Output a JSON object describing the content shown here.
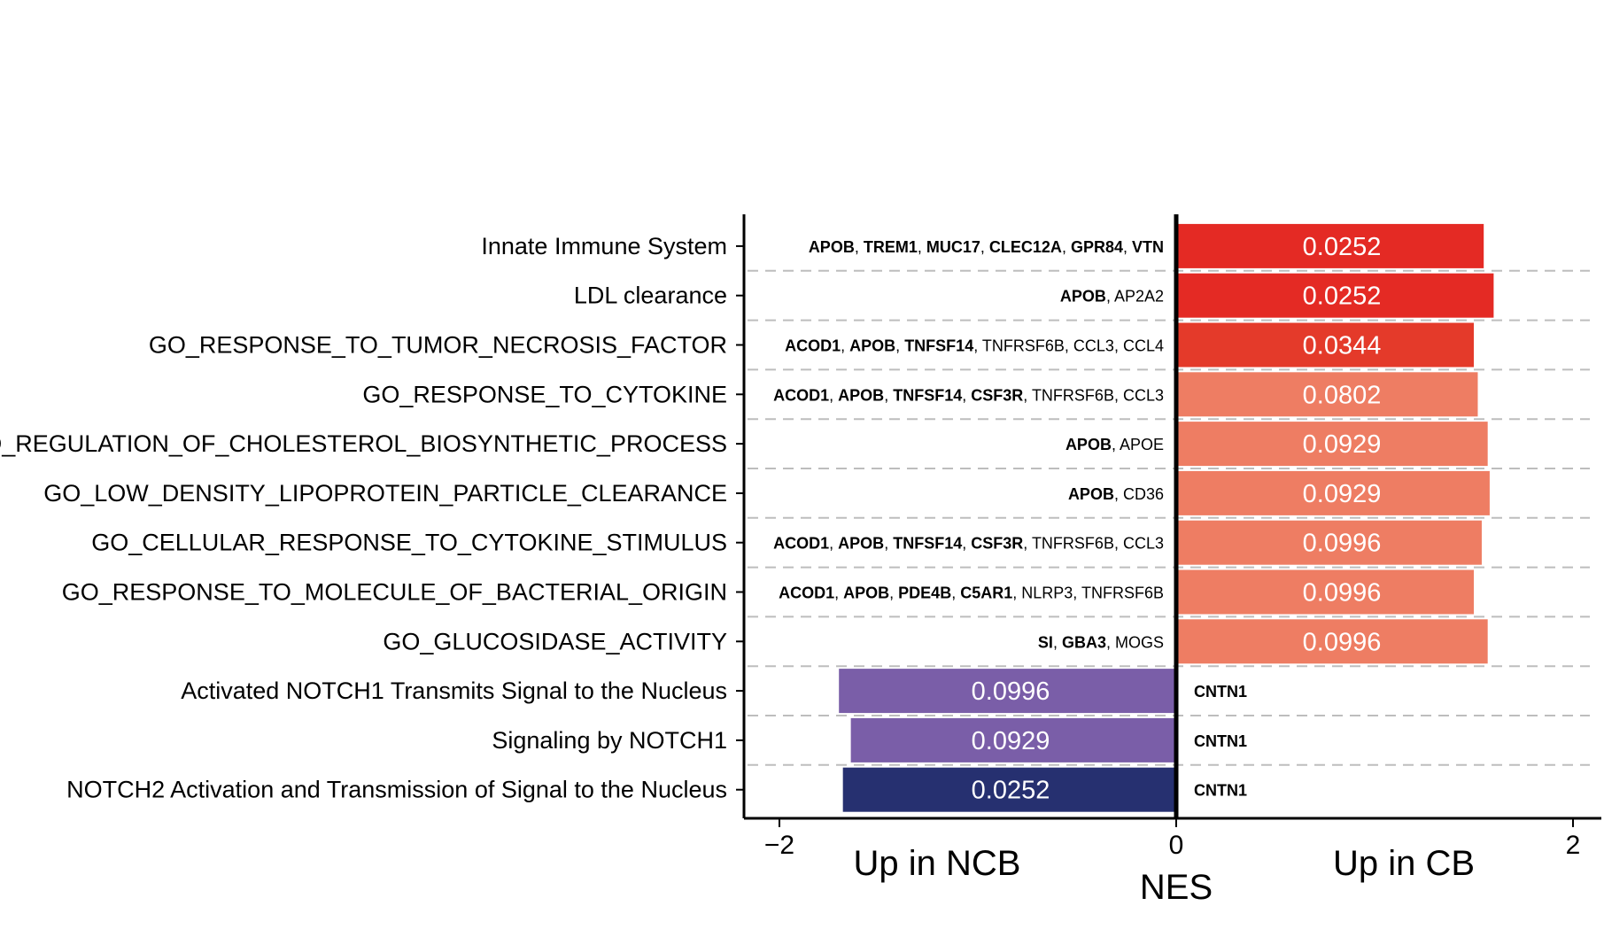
{
  "chart_data": {
    "type": "bar",
    "orientation": "horizontal",
    "categories": [
      "Innate Immune System",
      "LDL clearance",
      "GO_RESPONSE_TO_TUMOR_NECROSIS_FACTOR",
      "GO_RESPONSE_TO_CYTOKINE",
      "GO_REGULATION_OF_CHOLESTEROL_BIOSYNTHETIC_PROCESS",
      "GO_LOW_DENSITY_LIPOPROTEIN_PARTICLE_CLEARANCE",
      "GO_CELLULAR_RESPONSE_TO_CYTOKINE_STIMULUS",
      "GO_RESPONSE_TO_MOLECULE_OF_BACTERIAL_ORIGIN",
      "GO_GLUCOSIDASE_ACTIVITY",
      "Activated NOTCH1 Transmits Signal to the Nucleus",
      "Signaling by NOTCH1",
      "NOTCH2 Activation and Transmission of Signal to the Nucleus"
    ],
    "values": [
      1.55,
      1.6,
      1.5,
      1.52,
      1.57,
      1.58,
      1.54,
      1.5,
      1.57,
      -1.7,
      -1.64,
      -1.68
    ],
    "bar_labels": [
      "0.0252",
      "0.0252",
      "0.0344",
      "0.0802",
      "0.0929",
      "0.0929",
      "0.0996",
      "0.0996",
      "0.0996",
      "0.0996",
      "0.0929",
      "0.0252"
    ],
    "bar_colors": [
      "#e42a24",
      "#e42a24",
      "#e43a2a",
      "#ee7d63",
      "#ee7d63",
      "#ee7d63",
      "#ee7d63",
      "#ee7d63",
      "#ee7d63",
      "#7a5ea8",
      "#7a5ea8",
      "#263070"
    ],
    "genes": [
      [
        [
          "APOB",
          true
        ],
        [
          "TREM1",
          true
        ],
        [
          "MUC17",
          true
        ],
        [
          "CLEC12A",
          true
        ],
        [
          "GPR84",
          true
        ],
        [
          "VTN",
          true
        ]
      ],
      [
        [
          "APOB",
          true
        ],
        [
          "AP2A2",
          false
        ]
      ],
      [
        [
          "ACOD1",
          true
        ],
        [
          "APOB",
          true
        ],
        [
          "TNFSF14",
          true
        ],
        [
          "TNFRSF6B",
          false
        ],
        [
          "CCL3",
          false
        ],
        [
          "CCL4",
          false
        ]
      ],
      [
        [
          "ACOD1",
          true
        ],
        [
          "APOB",
          true
        ],
        [
          "TNFSF14",
          true
        ],
        [
          "CSF3R",
          true
        ],
        [
          "TNFRSF6B",
          false
        ],
        [
          "CCL3",
          false
        ]
      ],
      [
        [
          "APOB",
          true
        ],
        [
          "APOE",
          false
        ]
      ],
      [
        [
          "APOB",
          true
        ],
        [
          "CD36",
          false
        ]
      ],
      [
        [
          "ACOD1",
          true
        ],
        [
          "APOB",
          true
        ],
        [
          "TNFSF14",
          true
        ],
        [
          "CSF3R",
          true
        ],
        [
          "TNFRSF6B",
          false
        ],
        [
          "CCL3",
          false
        ]
      ],
      [
        [
          "ACOD1",
          true
        ],
        [
          "APOB",
          true
        ],
        [
          "PDE4B",
          true
        ],
        [
          "C5AR1",
          true
        ],
        [
          "NLRP3",
          false
        ],
        [
          "TNFRSF6B",
          false
        ]
      ],
      [
        [
          "SI",
          true
        ],
        [
          "GBA3",
          true
        ],
        [
          "MOGS",
          false
        ]
      ],
      [
        [
          "CNTN1",
          true
        ]
      ],
      [
        [
          "CNTN1",
          true
        ]
      ],
      [
        [
          "CNTN1",
          true
        ]
      ]
    ],
    "xlim": [
      -2,
      2
    ],
    "xticks": [
      "−2",
      "0",
      "2"
    ],
    "xlabel": "NES",
    "side_labels": {
      "negative": "Up in NCB",
      "positive": "Up in CB"
    },
    "grid": "dashed horizontal separators",
    "title": ""
  }
}
